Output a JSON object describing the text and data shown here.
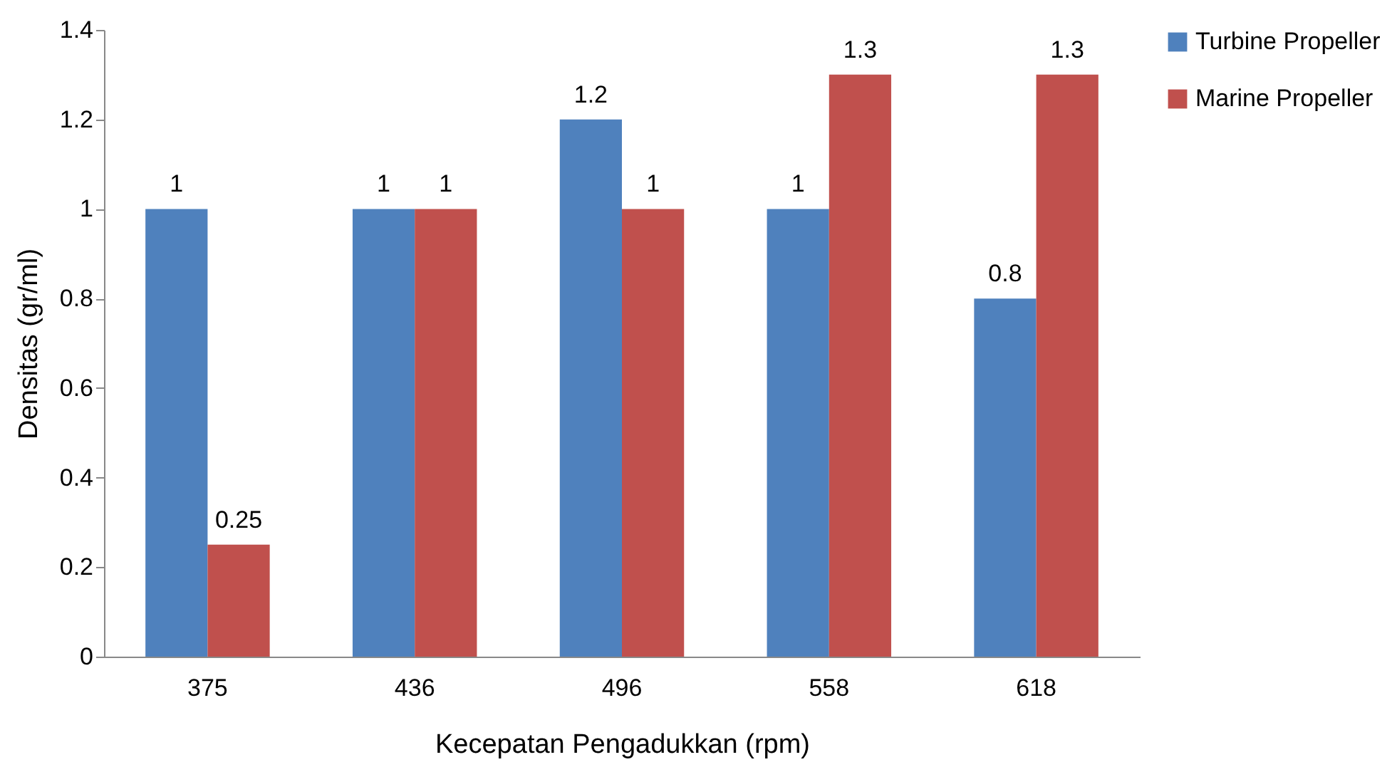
{
  "chart_data": {
    "type": "bar",
    "xlabel": "Kecepatan Pengadukkan (rpm)",
    "ylabel": "Densitas (gr/ml)",
    "categories": [
      "375",
      "436",
      "496",
      "558",
      "618"
    ],
    "series": [
      {
        "name": "Turbine Propeller",
        "color": "#4f81bd",
        "values": [
          1,
          1,
          1.2,
          1,
          0.8
        ]
      },
      {
        "name": "Marine Propeller",
        "color": "#c0504d",
        "values": [
          0.25,
          1,
          1,
          1.3,
          1.3
        ]
      }
    ],
    "ylim": [
      0,
      1.4
    ],
    "yticks": [
      0,
      0.2,
      0.4,
      0.6,
      0.8,
      1,
      1.2,
      1.4
    ],
    "grid": false,
    "legend": "right",
    "data_labels": true
  }
}
